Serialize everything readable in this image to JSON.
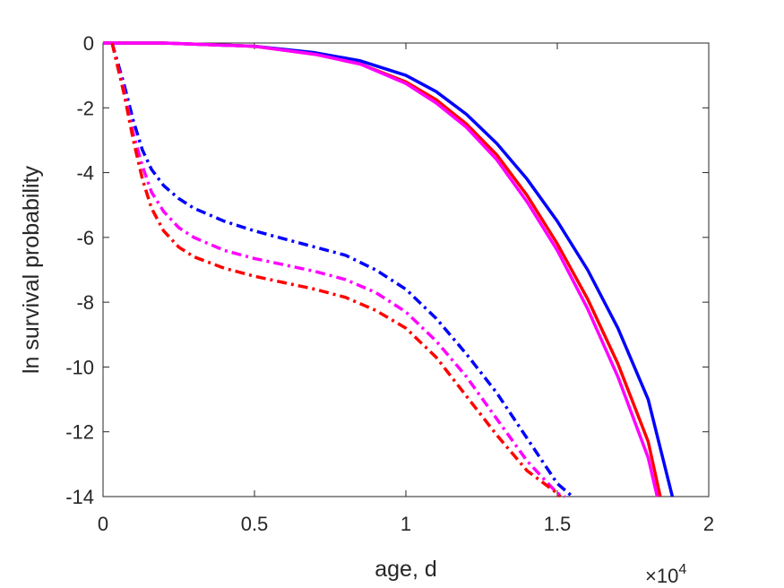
{
  "chart_data": {
    "type": "line",
    "title": "",
    "xlabel": "age, d",
    "ylabel": "ln survival probability",
    "x_exponent_label": {
      "base": "×10",
      "exponent": "4"
    },
    "xlim": [
      0,
      2
    ],
    "ylim": [
      -14,
      0
    ],
    "x_ticks": [
      "0",
      "0.5",
      "1",
      "1.5",
      "2"
    ],
    "y_ticks": [
      "0",
      "-2",
      "-4",
      "-6",
      "-8",
      "-10",
      "-12",
      "-14"
    ],
    "x_tick_values": [
      0,
      0.5,
      1,
      1.5,
      2
    ],
    "y_tick_values": [
      0,
      -2,
      -4,
      -6,
      -8,
      -10,
      -12,
      -14
    ],
    "grid": false,
    "legend": "none",
    "series": [
      {
        "color": "#0000ff",
        "style": "solid",
        "x": [
          0,
          0.2,
          0.5,
          0.7,
          0.85,
          1.0,
          1.1,
          1.2,
          1.3,
          1.4,
          1.5,
          1.6,
          1.7,
          1.8,
          1.88
        ],
        "y": [
          0,
          0,
          -0.1,
          -0.3,
          -0.55,
          -1.0,
          -1.5,
          -2.2,
          -3.1,
          -4.2,
          -5.5,
          -7.0,
          -8.8,
          -11.0,
          -14.0
        ]
      },
      {
        "color": "#ff0000",
        "style": "solid",
        "x": [
          0,
          0.2,
          0.5,
          0.7,
          0.85,
          1.0,
          1.1,
          1.2,
          1.3,
          1.4,
          1.5,
          1.6,
          1.7,
          1.8,
          1.84
        ],
        "y": [
          0,
          0,
          -0.1,
          -0.35,
          -0.65,
          -1.2,
          -1.75,
          -2.5,
          -3.45,
          -4.7,
          -6.2,
          -7.9,
          -9.9,
          -12.3,
          -14.0
        ]
      },
      {
        "color": "#ff00ff",
        "style": "solid",
        "x": [
          0,
          0.2,
          0.5,
          0.7,
          0.85,
          1.0,
          1.1,
          1.2,
          1.3,
          1.4,
          1.5,
          1.6,
          1.7,
          1.8,
          1.83
        ],
        "y": [
          0,
          0,
          -0.1,
          -0.35,
          -0.65,
          -1.25,
          -1.85,
          -2.6,
          -3.6,
          -4.9,
          -6.4,
          -8.2,
          -10.3,
          -12.8,
          -14.0
        ]
      },
      {
        "color": "#0000ff",
        "style": "dashdot",
        "x": [
          0.03,
          0.07,
          0.1,
          0.13,
          0.16,
          0.2,
          0.25,
          0.3,
          0.4,
          0.5,
          0.6,
          0.7,
          0.8,
          0.9,
          1.0,
          1.1,
          1.2,
          1.3,
          1.4,
          1.5,
          1.55
        ],
        "y": [
          0,
          -1.3,
          -2.4,
          -3.3,
          -3.9,
          -4.4,
          -4.8,
          -5.1,
          -5.5,
          -5.8,
          -6.05,
          -6.3,
          -6.55,
          -7.0,
          -7.6,
          -8.5,
          -9.6,
          -10.8,
          -12.2,
          -13.6,
          -14.0
        ]
      },
      {
        "color": "#ff00ff",
        "style": "dashdot",
        "x": [
          0.03,
          0.07,
          0.1,
          0.13,
          0.16,
          0.2,
          0.25,
          0.3,
          0.4,
          0.5,
          0.6,
          0.7,
          0.8,
          0.9,
          1.0,
          1.1,
          1.2,
          1.3,
          1.4,
          1.5,
          1.525
        ],
        "y": [
          0,
          -1.5,
          -2.8,
          -3.8,
          -4.6,
          -5.2,
          -5.7,
          -6.0,
          -6.4,
          -6.65,
          -6.85,
          -7.05,
          -7.3,
          -7.7,
          -8.3,
          -9.2,
          -10.3,
          -11.6,
          -12.9,
          -13.9,
          -14.0
        ]
      },
      {
        "color": "#ff0000",
        "style": "dashdot",
        "x": [
          0.03,
          0.07,
          0.1,
          0.13,
          0.16,
          0.2,
          0.25,
          0.3,
          0.4,
          0.5,
          0.6,
          0.7,
          0.8,
          0.9,
          1.0,
          1.1,
          1.2,
          1.3,
          1.4,
          1.5,
          1.51
        ],
        "y": [
          0,
          -1.6,
          -3.0,
          -4.2,
          -5.1,
          -5.8,
          -6.3,
          -6.6,
          -6.95,
          -7.2,
          -7.4,
          -7.6,
          -7.85,
          -8.25,
          -8.8,
          -9.7,
          -10.9,
          -12.1,
          -13.2,
          -13.9,
          -14.0
        ]
      }
    ]
  }
}
